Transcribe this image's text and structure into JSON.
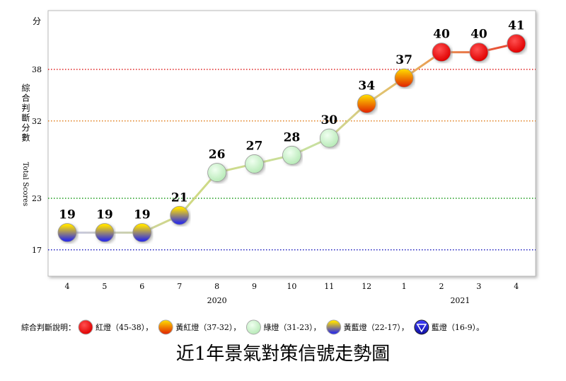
{
  "chart_data": {
    "type": "line",
    "title": "近1年景氣對策信號走勢圖",
    "y_unit": "分",
    "y_label": "綜合判斷分數",
    "y_label_en": "Total Scores",
    "categories": [
      "4",
      "5",
      "6",
      "7",
      "8",
      "9",
      "10",
      "11",
      "12",
      "1",
      "2",
      "3",
      "4"
    ],
    "x_groups": [
      {
        "label": "2020",
        "span": [
          0,
          8
        ]
      },
      {
        "label": "2021",
        "span": [
          9,
          12
        ]
      }
    ],
    "values": [
      19,
      19,
      19,
      21,
      26,
      27,
      28,
      30,
      34,
      37,
      40,
      40,
      41
    ],
    "point_styles": [
      "yellow-blue",
      "yellow-blue",
      "yellow-blue",
      "yellow-blue",
      "green",
      "green",
      "green",
      "green",
      "yellow-red",
      "yellow-red",
      "red",
      "red",
      "red"
    ],
    "ylim": [
      14.1,
      43.6
    ],
    "yticks": [
      17,
      23,
      32,
      38
    ],
    "reference_line_colors": [
      "#2020c0",
      "#1a9a1a",
      "#e08020",
      "#e02020"
    ],
    "legend_title": "綜合判斷說明：",
    "legend": [
      {
        "style": "red",
        "label": "紅燈（45-38），"
      },
      {
        "style": "yellow-red",
        "label": "黃紅燈（37-32），"
      },
      {
        "style": "green",
        "label": "綠燈（31-23），"
      },
      {
        "style": "yellow-blue",
        "label": "黃藍燈（22-17），"
      },
      {
        "style": "blue",
        "label": "藍燈（16-9）。"
      }
    ]
  }
}
